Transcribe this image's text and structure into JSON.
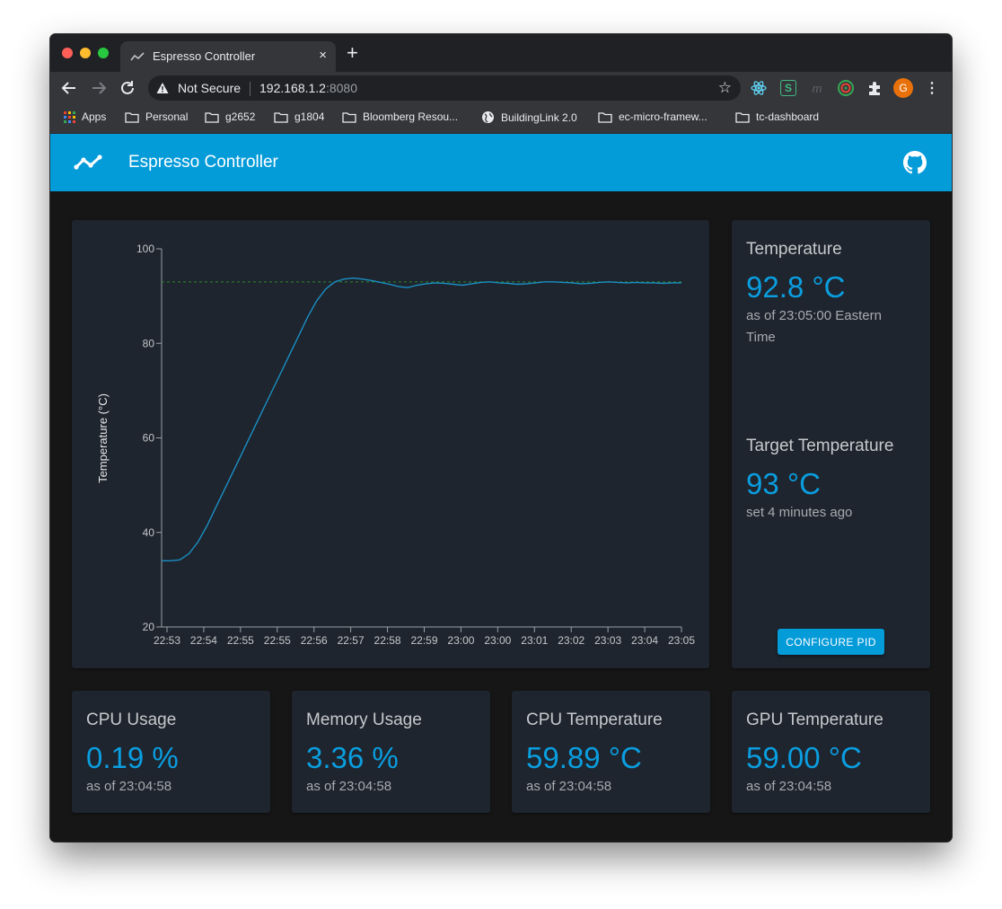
{
  "browser": {
    "tab_title": "Espresso Controller",
    "tab_close": "×",
    "new_tab": "+",
    "not_secure": "Not Secure",
    "url_host": "192.168.1.2",
    "url_port": ":8080",
    "profile_initial": "G",
    "extensions": [
      "react-devtools-icon",
      "s-extension-icon",
      "m-extension-icon",
      "target-extension-icon",
      "puzzle-icon"
    ],
    "bookmarks": [
      {
        "label": "Apps",
        "icon": "apps-grid-icon"
      },
      {
        "label": "Personal",
        "icon": "folder-icon"
      },
      {
        "label": "g2652",
        "icon": "folder-icon"
      },
      {
        "label": "g1804",
        "icon": "folder-icon"
      },
      {
        "label": "Bloomberg Resou...",
        "icon": "folder-icon"
      },
      {
        "label": "BuildingLink 2.0",
        "icon": "globe-icon"
      },
      {
        "label": "ec-micro-framew...",
        "icon": "folder-icon"
      },
      {
        "label": "tc-dashboard",
        "icon": "folder-icon"
      }
    ]
  },
  "app": {
    "title": "Espresso Controller",
    "accent": "#049bd9"
  },
  "temperature_card": {
    "title": "Temperature",
    "value": "92.8 °C",
    "sub": "as of 23:05:00 Eastern Time"
  },
  "target_card": {
    "title": "Target Temperature",
    "value": "93 °C",
    "sub": "set 4 minutes ago",
    "button": "CONFIGURE PID"
  },
  "stats": [
    {
      "title": "CPU Usage",
      "value": "0.19 %",
      "sub": "as of 23:04:58"
    },
    {
      "title": "Memory Usage",
      "value": "3.36 %",
      "sub": "as of 23:04:58"
    },
    {
      "title": "CPU Temperature",
      "value": "59.89 °C",
      "sub": "as of 23:04:58"
    },
    {
      "title": "GPU Temperature",
      "value": "59.00 °C",
      "sub": "as of 23:04:58"
    }
  ],
  "chart_data": {
    "type": "line",
    "ylabel": "Temperature (°C)",
    "ylim": [
      20,
      100
    ],
    "yticks": [
      20,
      40,
      60,
      80,
      100
    ],
    "xticks": [
      "22:53",
      "22:54",
      "22:55",
      "22:55",
      "22:56",
      "22:57",
      "22:58",
      "22:59",
      "23:00",
      "23:00",
      "23:01",
      "23:02",
      "23:03",
      "23:04",
      "23:05"
    ],
    "grid": false,
    "target": 93,
    "series_color": "#1a8fc4",
    "target_color": "#2e8b2e",
    "series": [
      {
        "values": [
          34.0,
          34.0,
          34.2,
          35.5,
          38.0,
          41.5,
          45.5,
          49.5,
          53.5,
          57.5,
          61.5,
          65.5,
          69.5,
          73.5,
          77.5,
          81.5,
          85.5,
          89.0,
          91.5,
          93.0,
          93.6,
          93.8,
          93.6,
          93.3,
          92.9,
          92.5,
          92.0,
          91.8,
          92.3,
          92.6,
          92.8,
          92.7,
          92.5,
          92.3,
          92.6,
          92.9,
          93.0,
          92.8,
          92.7,
          92.5,
          92.6,
          92.8,
          93.0,
          93.0,
          92.9,
          92.8,
          92.6,
          92.7,
          92.9,
          93.0,
          92.9,
          92.8,
          92.9,
          92.8,
          92.8,
          92.7,
          92.8,
          92.8
        ]
      }
    ]
  }
}
